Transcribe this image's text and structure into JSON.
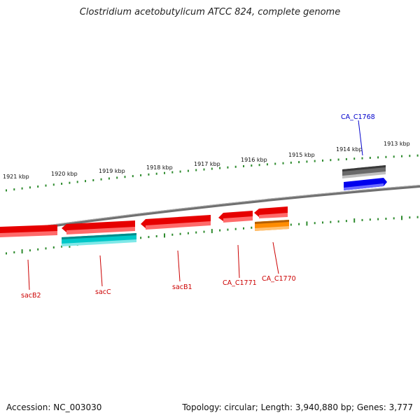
{
  "title": "Clostridium acetobutylicum ATCC 824, complete genome",
  "footer": {
    "accession": "Accession: NC_003030",
    "summary": "Topology: circular; Length: 3,940,880 bp; Genes: 3,777"
  },
  "colors": {
    "backbone": "#808080",
    "ticks": "#2e8b2e",
    "forward_gene": "#e60000",
    "reverse_gene": "#e60000",
    "cds_cyan": "#00c8c8",
    "cds_orange": "#ff8c00",
    "cds_blue": "#0000ee",
    "cds_gray": "#6a6a6a",
    "label_red": "#cc0000",
    "label_blue": "#0000cc"
  },
  "scale_labels": [
    "1921 kbp",
    "1920 kbp",
    "1919 kbp",
    "1918 kbp",
    "1917 kbp",
    "1916 kbp",
    "1915 kbp",
    "1914 kbp",
    "1913 kbp"
  ],
  "genes": [
    {
      "name": "sacB2",
      "color": "label_red"
    },
    {
      "name": "sacC",
      "color": "label_red"
    },
    {
      "name": "sacB1",
      "color": "label_red"
    },
    {
      "name": "CA_C1771",
      "color": "label_red"
    },
    {
      "name": "CA_C1770",
      "color": "label_red"
    },
    {
      "name": "CA_C1768",
      "color": "label_blue"
    }
  ]
}
